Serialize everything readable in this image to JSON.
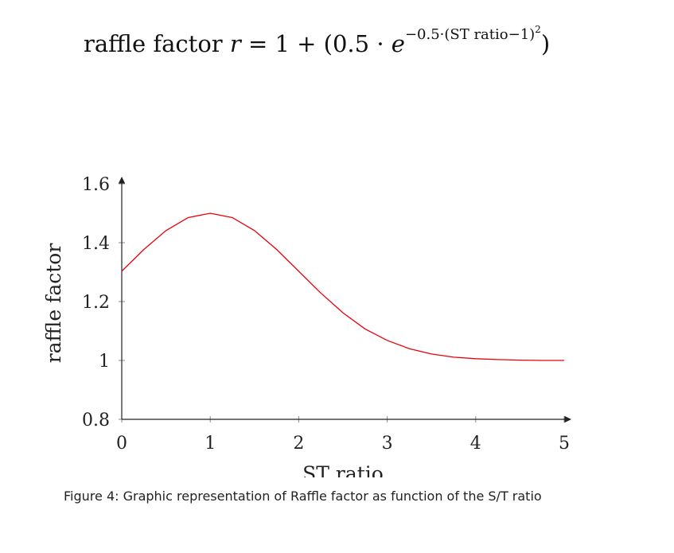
{
  "formula": {
    "lhs": "raffle factor",
    "var": "r",
    "rhs_start": "= 1 + (0.5 · ",
    "base": "e",
    "exponent": "−0.5·(ST ratio−1)",
    "exponent_power": "2",
    "rhs_end": ")"
  },
  "caption": "Figure 4: Graphic representation of Raffle factor as function of the S/T ratio",
  "chart_data": {
    "type": "line",
    "xlabel": "ST ratio",
    "ylabel": "raffle factor",
    "xlim": [
      0,
      5
    ],
    "ylim": [
      0.8,
      1.6
    ],
    "x_ticks": [
      0,
      1,
      2,
      3,
      4,
      5
    ],
    "x_tick_labels": [
      "0",
      "1",
      "2",
      "3",
      "4",
      "5"
    ],
    "y_ticks": [
      0.8,
      1,
      1.2,
      1.4,
      1.6
    ],
    "y_tick_labels": [
      "0.8",
      "1",
      "1.2",
      "1.4",
      "1.6"
    ],
    "grid": false,
    "series": [
      {
        "color": "#e8000b",
        "x": [
          0,
          0.25,
          0.5,
          0.75,
          1,
          1.25,
          1.5,
          1.75,
          2,
          2.25,
          2.5,
          2.75,
          3,
          3.25,
          3.5,
          3.75,
          4,
          4.25,
          4.5,
          4.75,
          5
        ],
        "y": [
          1.303,
          1.377,
          1.441,
          1.485,
          1.5,
          1.485,
          1.441,
          1.377,
          1.303,
          1.229,
          1.162,
          1.107,
          1.068,
          1.04,
          1.022,
          1.011,
          1.006,
          1.003,
          1.001,
          1.0,
          1.0
        ]
      }
    ]
  }
}
